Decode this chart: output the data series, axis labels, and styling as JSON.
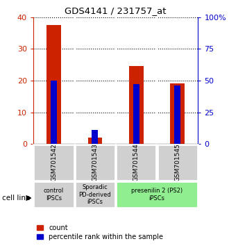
{
  "title": "GDS4141 / 231757_at",
  "samples": [
    "GSM701542",
    "GSM701543",
    "GSM701544",
    "GSM701545"
  ],
  "red_values": [
    37.5,
    2.0,
    24.5,
    19.0
  ],
  "blue_values_pct": [
    50.0,
    11.0,
    47.0,
    46.0
  ],
  "left_ylim": [
    0,
    40
  ],
  "right_ylim": [
    0,
    100
  ],
  "left_yticks": [
    0,
    10,
    20,
    30,
    40
  ],
  "right_yticks": [
    0,
    25,
    50,
    75,
    100
  ],
  "right_yticklabels": [
    "0",
    "25",
    "50",
    "75",
    "100%"
  ],
  "groups": [
    {
      "label": "control\nIPSCs",
      "color": "#d0d0d0",
      "start": 0,
      "end": 1
    },
    {
      "label": "Sporadic\nPD-derived\niPSCs",
      "color": "#d0d0d0",
      "start": 1,
      "end": 2
    },
    {
      "label": "presenilin 2 (PS2)\niPSCs",
      "color": "#90ee90",
      "start": 2,
      "end": 4
    }
  ],
  "bar_color_red": "#cc2200",
  "bar_color_blue": "#0000cc",
  "red_bar_width": 0.35,
  "blue_bar_width": 0.15,
  "legend_red_label": "count",
  "legend_blue_label": "percentile rank within the sample",
  "cell_line_label": "cell line",
  "left_tick_color": "#cc2200",
  "right_tick_color": "#0000cc",
  "sample_box_color": "#d0d0d0"
}
